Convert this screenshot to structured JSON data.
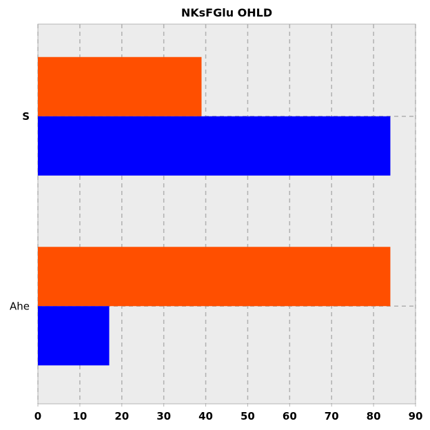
{
  "chart_data": {
    "type": "bar",
    "orientation": "horizontal",
    "title": "NKsFGlu OHLD",
    "xlabel": "",
    "ylabel": "",
    "categories": [
      "S",
      "Ahe"
    ],
    "xlim": [
      0,
      90
    ],
    "xticks": [
      0,
      10,
      20,
      30,
      40,
      50,
      60,
      70,
      80,
      90
    ],
    "grid": true,
    "legend": "none",
    "series": [
      {
        "values": [
          39,
          84
        ],
        "color": "#ff4f00"
      },
      {
        "values": [
          84,
          17
        ],
        "color": "#0000ff"
      }
    ],
    "plot_background": "#ececec"
  }
}
